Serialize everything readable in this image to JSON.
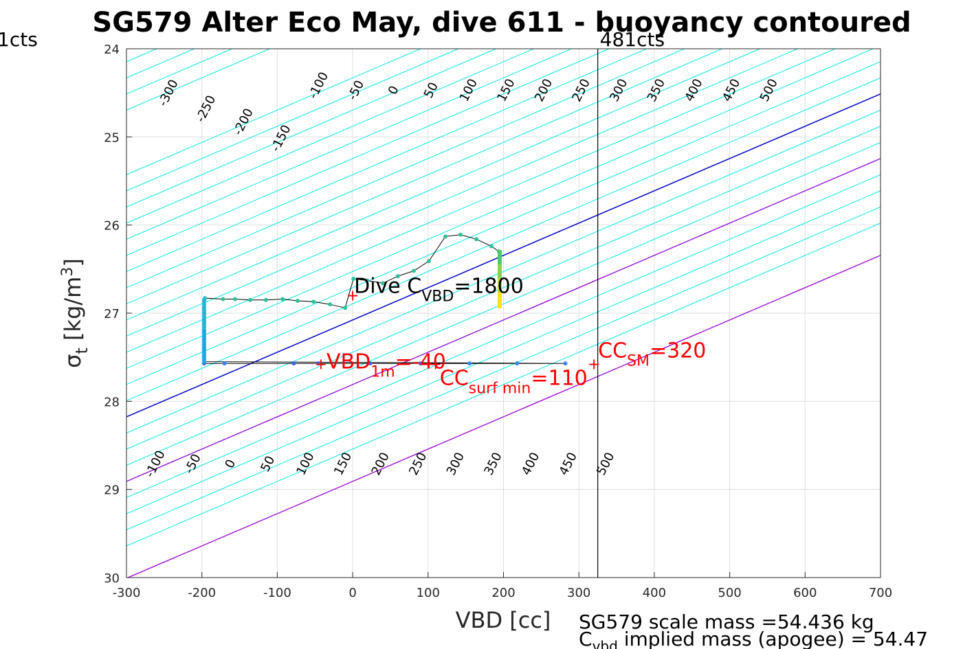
{
  "chart_data": {
    "type": "line",
    "title": "SG579 Alter Eco May, dive 611 - buoyancy contoured",
    "xlabel": "VBD [cc]",
    "ylabel_main": "σ",
    "ylabel_sub": "t",
    "ylabel_rest": " [kg/m",
    "ylabel_sup": "3",
    "ylabel_end": "]",
    "xlim": [
      -300,
      700
    ],
    "ylim": [
      24,
      30
    ],
    "y_reversed": true,
    "grid": true,
    "xticks": [
      "-300",
      "-200",
      "-100",
      "0",
      "100",
      "200",
      "300",
      "400",
      "500",
      "600",
      "700"
    ],
    "yticks": [
      "24",
      "25",
      "26",
      "27",
      "28",
      "29",
      "30"
    ],
    "contours": {
      "slope_cc_per_sigma": 273,
      "ref_sigma": 24,
      "vbd_at_ref": [
        -310,
        -260,
        -210,
        -160,
        -110,
        90,
        140,
        190,
        240,
        290,
        340,
        390,
        440,
        490,
        540
      ],
      "zero_contour_vbd_at_ref": 840,
      "purple_contours_vbd_at_ref": [
        1040,
        1340
      ],
      "upper_label_values": [
        "-300",
        "-250",
        "-200",
        "-150",
        "-100",
        "-50",
        "0",
        "50",
        "100",
        "150",
        "200",
        "250",
        "300",
        "350",
        "400",
        "450",
        "500"
      ],
      "lower_label_values": [
        "-100",
        "-50",
        "0",
        "50",
        "100",
        "150",
        "200",
        "250",
        "300",
        "350",
        "400",
        "450",
        "500"
      ],
      "colors": {
        "normal": "#00e5e5",
        "zero": "#0000c8",
        "highlight": "#9b00d9"
      }
    },
    "series": [
      {
        "color_path": "#000000",
        "points": [
          [
            -197,
            27.57
          ],
          [
            -170,
            27.57
          ],
          [
            -78,
            27.57
          ],
          [
            -45,
            27.57
          ],
          [
            23,
            27.57
          ],
          [
            90,
            27.57
          ],
          [
            155,
            27.57
          ],
          [
            218,
            27.57
          ],
          [
            282,
            27.57
          ],
          [
            -197,
            27.55
          ],
          [
            -197,
            27.5
          ],
          [
            -197,
            27.4
          ],
          [
            -197,
            27.3
          ],
          [
            -197,
            27.2
          ],
          [
            -197,
            27.1
          ],
          [
            -197,
            27.0
          ],
          [
            -197,
            26.95
          ],
          [
            -197,
            26.85
          ],
          [
            -196,
            26.83
          ],
          [
            -172,
            26.84
          ],
          [
            -156,
            26.84
          ],
          [
            -136,
            26.85
          ],
          [
            -115,
            26.85
          ],
          [
            -93,
            26.84
          ],
          [
            -73,
            26.86
          ],
          [
            -52,
            26.87
          ],
          [
            -30,
            26.9
          ],
          [
            -10,
            26.94
          ],
          [
            1,
            26.61
          ],
          [
            19,
            26.63
          ],
          [
            40,
            26.66
          ],
          [
            60,
            26.58
          ],
          [
            81,
            26.52
          ],
          [
            101,
            26.41
          ],
          [
            123,
            26.13
          ],
          [
            143,
            26.11
          ],
          [
            164,
            26.16
          ],
          [
            184,
            26.24
          ],
          [
            194,
            26.3
          ],
          [
            195,
            26.5
          ],
          [
            195,
            26.7
          ],
          [
            195,
            26.9
          ]
        ],
        "point_colors": [
          "#4065ea",
          "#3a80ed",
          "#4065ea",
          "#4065ea",
          "#4065ea",
          "#4065ea",
          "#3a86ed",
          "#3a86ed",
          "#3a86ed",
          "#1ca8e1",
          "#1ca8e1",
          "#1ca8e1",
          "#1ca8e1",
          "#1ca8e1",
          "#1ca8e1",
          "#26b6d4",
          "#26b6d4",
          "#26b6d4",
          "#2ebfb8",
          "#2cc29a",
          "#2cc29a",
          "#2cc29a",
          "#2cc29a",
          "#2cc29a",
          "#2cc29a",
          "#2cc29a",
          "#2cc29a",
          "#2cc29a",
          "#2cc29a",
          "#2cc29a",
          "#2cc29a",
          "#2cc29a",
          "#2cc29a",
          "#2cc29a",
          "#2cc29a",
          "#2cc29a",
          "#2cc29a",
          "#2cc29a",
          "#4cca6e",
          "#8ad14c",
          "#c8d832",
          "#ffe21e"
        ]
      }
    ],
    "vertical_line": {
      "x": 325,
      "label_right": "481cts",
      "label_left": "1cts"
    },
    "annotations": [
      {
        "id": "dive_cvbd",
        "x": 0,
        "y": 26.8,
        "color": "#000000",
        "main": "Dive C",
        "sub": "VBD",
        "rest": "=1800"
      },
      {
        "id": "vbd_1m",
        "x": -42,
        "y": 27.58,
        "color": "#ff0000",
        "main": "VBD",
        "sub": "1m",
        "rest": "=-40"
      },
      {
        "id": "cc_surf_min",
        "x": 110,
        "y": 27.58,
        "color": "#ff0000",
        "main": "CC",
        "sub": "surf min",
        "rest": "=110"
      },
      {
        "id": "cc_sm",
        "x": 320,
        "y": 27.58,
        "color": "#ff0000",
        "main": "CC",
        "sub": "SM",
        "rest": "=320"
      }
    ],
    "footer": {
      "line1": "SG579 scale mass =54.436 kg",
      "line2_main": "C",
      "line2_sub": "vbd",
      "line2_rest": " implied mass (apogee) = 54.47"
    }
  }
}
